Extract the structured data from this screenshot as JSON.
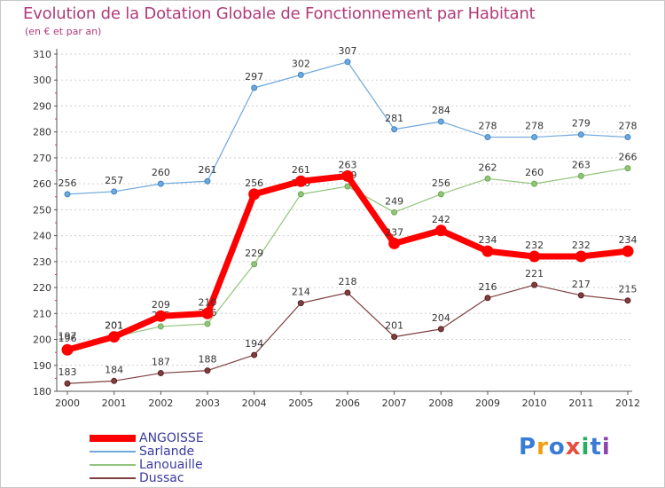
{
  "title": "Evolution de la Dotation Globale de Fonctionnement par Habitant",
  "subtitle": "(en € et par an)",
  "logo": {
    "text": "Proxiti",
    "letters": [
      "P",
      "r",
      "o",
      "x",
      "i",
      "t",
      "i"
    ],
    "colors": [
      "#3a7bd5",
      "#f39c12",
      "#3a7bd5",
      "#e74c3c",
      "#27ae60",
      "#3a7bd5",
      "#8e44ad"
    ]
  },
  "chart_data": {
    "type": "line",
    "title": "Evolution de la Dotation Globale de Fonctionnement par Habitant",
    "subtitle": "(en € et par an)",
    "xlabel": "",
    "ylabel": "",
    "x": [
      "2000",
      "2001",
      "2002",
      "2003",
      "2004",
      "2005",
      "2006",
      "2007",
      "2008",
      "2009",
      "2010",
      "2011",
      "2012"
    ],
    "ylim": [
      180,
      310
    ],
    "yticks": [
      180,
      190,
      200,
      210,
      220,
      230,
      240,
      250,
      260,
      270,
      280,
      290,
      300,
      310
    ],
    "grid": "horizontal dashed",
    "legend_position": "bottom-left",
    "series": [
      {
        "name": "Sarlande",
        "color": "#6fa8dc",
        "marker": "#3d85c6",
        "width": 1.2,
        "values": [
          256,
          257,
          260,
          261,
          297,
          302,
          307,
          281,
          284,
          278,
          278,
          279,
          278
        ]
      },
      {
        "name": "Lanouaille",
        "color": "#93c47d",
        "marker": "#6aa84f",
        "width": 1.2,
        "values": [
          197,
          201,
          205,
          206,
          229,
          256,
          259,
          249,
          256,
          262,
          260,
          263,
          266
        ]
      },
      {
        "name": "Dussac",
        "color": "#7f3f3f",
        "marker": "#5b1f1f",
        "width": 1.2,
        "values": [
          183,
          184,
          187,
          188,
          194,
          214,
          218,
          201,
          204,
          216,
          221,
          217,
          215
        ]
      },
      {
        "name": "ANGOISSE",
        "color": "#ff0000",
        "marker": "#ff0000",
        "width": 7,
        "values": [
          196,
          201,
          209,
          210,
          256,
          261,
          263,
          237,
          242,
          234,
          232,
          232,
          234
        ]
      }
    ]
  },
  "legend": [
    {
      "name": "ANGOISSE",
      "color": "#ff0000",
      "thickness": 8
    },
    {
      "name": "Sarlande",
      "color": "#6fa8dc",
      "thickness": 2
    },
    {
      "name": "Lanouaille",
      "color": "#93c47d",
      "thickness": 2
    },
    {
      "name": "Dussac",
      "color": "#7f3f3f",
      "thickness": 2
    }
  ]
}
